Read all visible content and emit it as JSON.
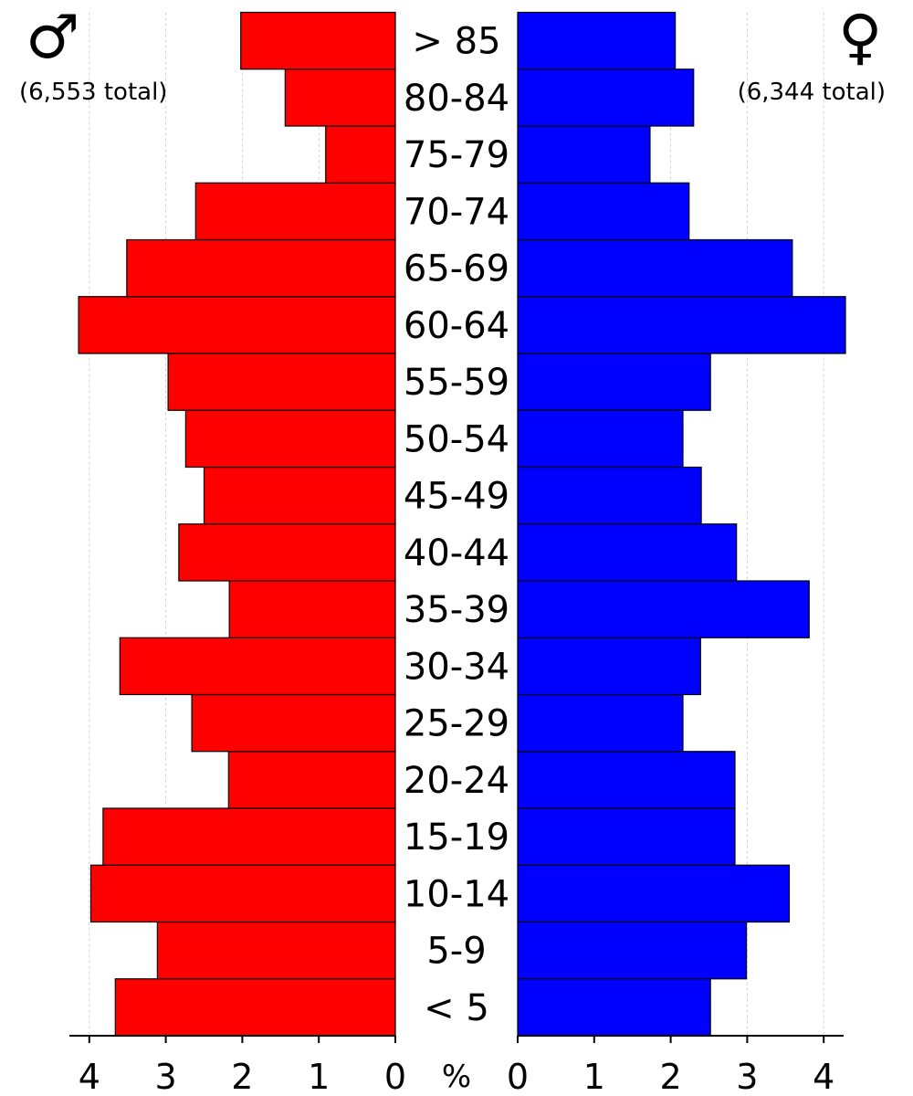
{
  "header": {
    "male_symbol": "♂",
    "female_symbol": "♀",
    "male_total": "(6,553 total)",
    "female_total": "(6,344 total)"
  },
  "colors": {
    "male": "#ff0000",
    "female": "#0000ff",
    "outline": "#000000"
  },
  "chart_data": {
    "type": "bar",
    "orientation": "horizontal-pyramid",
    "categories": [
      "< 5",
      "5-9",
      "10-14",
      "15-19",
      "20-24",
      "25-29",
      "30-34",
      "35-39",
      "40-44",
      "45-49",
      "50-54",
      "55-59",
      "60-64",
      "65-69",
      "70-74",
      "75-79",
      "80-84",
      "> 85"
    ],
    "series": [
      {
        "name": "♂",
        "values": [
          3.66,
          3.11,
          3.98,
          3.82,
          2.18,
          2.66,
          3.6,
          2.17,
          2.83,
          2.5,
          2.74,
          2.97,
          4.14,
          3.51,
          2.61,
          0.91,
          1.44,
          2.02
        ]
      },
      {
        "name": "♀",
        "values": [
          2.52,
          2.99,
          3.55,
          2.84,
          2.84,
          2.16,
          2.39,
          3.81,
          2.86,
          2.4,
          2.16,
          2.52,
          4.29,
          3.59,
          2.24,
          1.73,
          2.3,
          2.06
        ]
      }
    ],
    "x_ticks": [
      0,
      1,
      2,
      3,
      4
    ],
    "xlabel": "%",
    "xlim": [
      0,
      4.3
    ],
    "grid": "vertical dashed"
  }
}
